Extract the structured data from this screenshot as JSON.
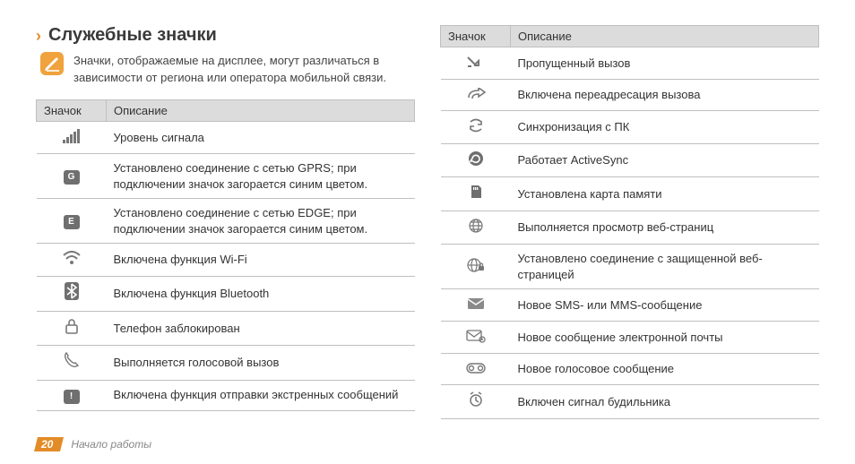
{
  "colors": {
    "accent": "#e38b27",
    "header_bg": "#dcdcdc",
    "border": "#bfbfbf",
    "text": "#333333",
    "muted": "#888888",
    "icon_gray": "#777777",
    "badge_bg": "#6f6f6f"
  },
  "heading": {
    "chevron": "›",
    "title": "Служебные значки"
  },
  "note": {
    "text": "Значки, отображаемые на дисплее, могут различаться в зависимости от региона или оператора мобильной связи."
  },
  "table": {
    "header_icon": "Значок",
    "header_desc": "Описание"
  },
  "left_rows": [
    {
      "icon": "signal-icon",
      "desc": "Уровень сигнала"
    },
    {
      "icon": "gprs-icon",
      "desc": "Установлено соединение с сетью GPRS; при подключении значок загорается синим цветом."
    },
    {
      "icon": "edge-icon",
      "desc": "Установлено соединение с сетью EDGE; при подключении значок загорается синим цветом."
    },
    {
      "icon": "wifi-icon",
      "desc": "Включена функция Wi-Fi"
    },
    {
      "icon": "bluetooth-icon",
      "desc": "Включена функция Bluetooth"
    },
    {
      "icon": "lock-icon",
      "desc": "Телефон заблокирован"
    },
    {
      "icon": "call-icon",
      "desc": "Выполняется голосовой вызов"
    },
    {
      "icon": "sos-icon",
      "desc": "Включена функция отправки экстренных сообщений"
    }
  ],
  "right_rows": [
    {
      "icon": "missed-call-icon",
      "desc": "Пропущенный вызов"
    },
    {
      "icon": "call-forward-icon",
      "desc": "Включена переадресация вызова"
    },
    {
      "icon": "sync-pc-icon",
      "desc": "Синхронизация с ПК"
    },
    {
      "icon": "activesync-icon",
      "desc": "Работает ActiveSync"
    },
    {
      "icon": "sd-card-icon",
      "desc": "Установлена карта памяти"
    },
    {
      "icon": "web-browse-icon",
      "desc": "Выполняется просмотр веб-страниц"
    },
    {
      "icon": "web-secure-icon",
      "desc": "Установлено соединение с защищенной веб-страницей"
    },
    {
      "icon": "sms-icon",
      "desc": "Новое SMS- или MMS-сообщение"
    },
    {
      "icon": "email-icon",
      "desc": "Новое сообщение электронной почты"
    },
    {
      "icon": "voicemail-icon",
      "desc": "Новое голосовое сообщение"
    },
    {
      "icon": "alarm-icon",
      "desc": "Включен сигнал будильника"
    }
  ],
  "footer": {
    "page_number": "20",
    "section": "Начало работы"
  },
  "icon_labels": {
    "gprs-icon": "G",
    "edge-icon": "E",
    "sos-icon": "!"
  }
}
